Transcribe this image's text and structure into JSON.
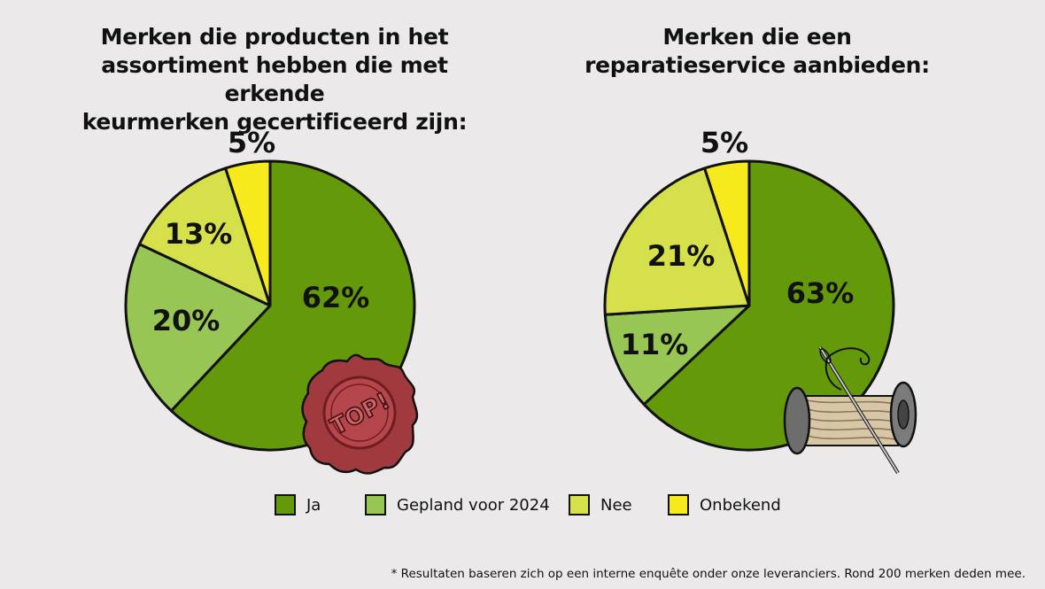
{
  "colors": {
    "ja": "#649a0a",
    "gepland": "#98c655",
    "nee": "#d5e04a",
    "onbekend": "#f7ea1c",
    "outline": "#111111",
    "background": "#ebe9ea"
  },
  "chart_data": [
    {
      "type": "pie",
      "title": "Merken die producten in het\nassortiment hebben die met erkende\nkeurmerken gecertificeerd zijn:",
      "slices": [
        {
          "name": "Ja",
          "value": 62,
          "label": "62%"
        },
        {
          "name": "Gepland voor 2024",
          "value": 20,
          "label": "20%"
        },
        {
          "name": "Nee",
          "value": 13,
          "label": "13%"
        },
        {
          "name": "Onbekend",
          "value": 5,
          "label": "5%"
        }
      ],
      "badge_text": "TOP!"
    },
    {
      "type": "pie",
      "title": "Merken die een\nreparatieservice aanbieden:",
      "slices": [
        {
          "name": "Ja",
          "value": 63,
          "label": "63%"
        },
        {
          "name": "Gepland voor 2024",
          "value": 11,
          "label": "11%"
        },
        {
          "name": "Nee",
          "value": 21,
          "label": "21%"
        },
        {
          "name": "Onbekend",
          "value": 5,
          "label": "5%"
        }
      ]
    }
  ],
  "legend": [
    {
      "label": "Ja",
      "color": "#649a0a"
    },
    {
      "label": "Gepland voor 2024",
      "color": "#98c655"
    },
    {
      "label": "Nee",
      "color": "#d5e04a"
    },
    {
      "label": "Onbekend",
      "color": "#f7ea1c"
    }
  ],
  "footnote": "* Resultaten baseren zich op een interne enquête onder onze leveranciers. Rond 200 merken deden mee."
}
